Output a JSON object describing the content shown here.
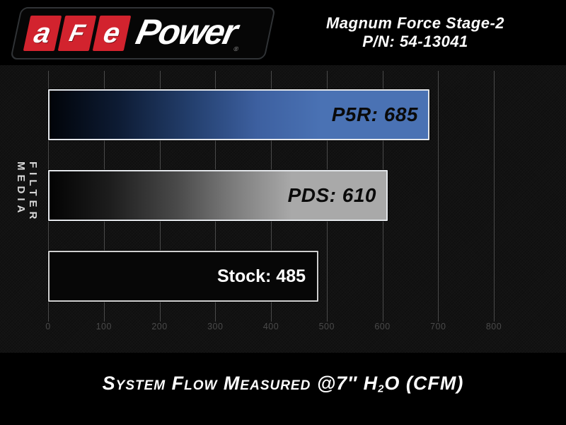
{
  "header": {
    "logo": {
      "letters": [
        "a",
        "F",
        "e"
      ],
      "wordmark": "Power",
      "registered": "®"
    },
    "product_line1": "Magnum Force Stage-2",
    "product_line2": "P/N: 54-13041"
  },
  "chart_data": {
    "type": "bar",
    "orientation": "horizontal",
    "categories": [
      "P5R",
      "PDS",
      "Stock"
    ],
    "values": [
      685,
      610,
      485
    ],
    "bar_labels": [
      "P5R: 685",
      "PDS: 610",
      "Stock: 485"
    ],
    "series": [
      {
        "name": "System Flow (CFM)",
        "values": [
          685,
          610,
          485
        ]
      }
    ],
    "title": "System Flow Measured @7\" H2O (CFM)",
    "xlabel": "",
    "ylabel": "FILTER MEDIA",
    "xticks": [
      0,
      100,
      200,
      300,
      400,
      500,
      600,
      700,
      800
    ],
    "xlim": [
      0,
      930
    ],
    "grid": true,
    "legend": false,
    "bar_colors": {
      "P5R": "#4a72b4",
      "PDS": "#a9a9a9",
      "Stock": "#070707"
    }
  },
  "title_parts": {
    "part1": "System Flow Measured @7″ H",
    "sub": "2",
    "part2": "O (CFM)"
  },
  "colors": {
    "logo_red": "#d2232e",
    "p5r_blue": "#4a72b4",
    "pds_gray": "#a9a9a9",
    "stock_black": "#070707",
    "bar_border": "#e3e6ea",
    "panel_bg": "#121212",
    "gridline": "#5e5e5e",
    "tick_label": "#4a4a4a",
    "text_white": "#ffffff"
  }
}
